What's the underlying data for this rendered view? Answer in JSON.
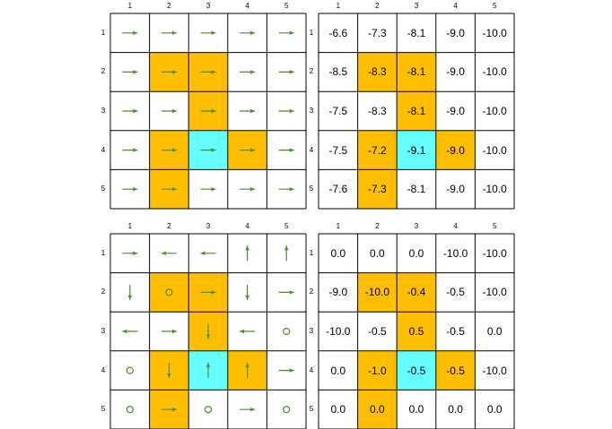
{
  "colors": {
    "highlight": "#FFBF00",
    "current": "#66FFFF",
    "arrow": "#4E8A2E",
    "grid_line": "#000000"
  },
  "panels": [
    {
      "id": "policy-top",
      "type": "arrows",
      "col_labels": [
        "1",
        "2",
        "3",
        "4",
        "5"
      ],
      "row_labels": [
        "1",
        "2",
        "3",
        "4",
        "5"
      ],
      "cell_colors": [
        [
          "",
          "",
          "",
          "",
          ""
        ],
        [
          "",
          "highlight",
          "highlight",
          "",
          ""
        ],
        [
          "",
          "",
          "highlight",
          "",
          ""
        ],
        [
          "",
          "highlight",
          "current",
          "highlight",
          ""
        ],
        [
          "",
          "highlight",
          "",
          "",
          ""
        ]
      ],
      "cells": [
        [
          "right",
          "right",
          "right",
          "right",
          "right"
        ],
        [
          "right",
          "right",
          "right",
          "right",
          "right"
        ],
        [
          "right",
          "right",
          "right",
          "right",
          "right"
        ],
        [
          "right",
          "right",
          "right",
          "right",
          "right"
        ],
        [
          "right",
          "right",
          "right",
          "right",
          "right"
        ]
      ]
    },
    {
      "id": "values-top",
      "type": "values",
      "col_labels": [
        "1",
        "2",
        "3",
        "4",
        "5"
      ],
      "row_labels": [
        "1",
        "2",
        "3",
        "4",
        "5"
      ],
      "cell_colors": [
        [
          "",
          "",
          "",
          "",
          ""
        ],
        [
          "",
          "highlight",
          "highlight",
          "",
          ""
        ],
        [
          "",
          "",
          "highlight",
          "",
          ""
        ],
        [
          "",
          "highlight",
          "current",
          "highlight",
          ""
        ],
        [
          "",
          "highlight",
          "",
          "",
          ""
        ]
      ],
      "cells": [
        [
          "-6.6",
          "-7.3",
          "-8.1",
          "-9.0",
          "-10.0"
        ],
        [
          "-8.5",
          "-8.3",
          "-8.1",
          "-9.0",
          "-10.0"
        ],
        [
          "-7.5",
          "-8.3",
          "-8.1",
          "-9.0",
          "-10.0"
        ],
        [
          "-7.5",
          "-7.2",
          "-9.1",
          "-9.0",
          "-10.0"
        ],
        [
          "-7.6",
          "-7.3",
          "-8.1",
          "-9.0",
          "-10.0"
        ]
      ]
    },
    {
      "id": "policy-bottom",
      "type": "arrows",
      "col_labels": [
        "1",
        "2",
        "3",
        "4",
        "5"
      ],
      "row_labels": [
        "1",
        "2",
        "3",
        "4",
        "5"
      ],
      "cell_colors": [
        [
          "",
          "",
          "",
          "",
          ""
        ],
        [
          "",
          "highlight",
          "highlight",
          "",
          ""
        ],
        [
          "",
          "",
          "highlight",
          "",
          ""
        ],
        [
          "",
          "highlight",
          "current",
          "highlight",
          ""
        ],
        [
          "",
          "highlight",
          "",
          "",
          ""
        ]
      ],
      "cells": [
        [
          "right",
          "left",
          "left",
          "up",
          "up"
        ],
        [
          "down",
          "stay",
          "right",
          "down",
          "right"
        ],
        [
          "left",
          "right",
          "down",
          "left",
          "stay"
        ],
        [
          "stay",
          "down",
          "up",
          "up",
          "right"
        ],
        [
          "stay",
          "right",
          "stay",
          "right",
          "stay"
        ]
      ]
    },
    {
      "id": "values-bottom",
      "type": "values",
      "col_labels": [
        "1",
        "2",
        "3",
        "4",
        "5"
      ],
      "row_labels": [
        "1",
        "2",
        "3",
        "4",
        "5"
      ],
      "cell_colors": [
        [
          "",
          "",
          "",
          "",
          ""
        ],
        [
          "",
          "highlight",
          "highlight",
          "",
          ""
        ],
        [
          "",
          "",
          "highlight",
          "",
          ""
        ],
        [
          "",
          "highlight",
          "current",
          "highlight",
          ""
        ],
        [
          "",
          "highlight",
          "",
          "",
          ""
        ]
      ],
      "cells": [
        [
          "0.0",
          "0.0",
          "0.0",
          "-10.0",
          "-10.0"
        ],
        [
          "-9.0",
          "-10.0",
          "-0.4",
          "-0.5",
          "-10.0"
        ],
        [
          "-10.0",
          "-0.5",
          "0.5",
          "-0.5",
          "0.0"
        ],
        [
          "0.0",
          "-1.0",
          "-0.5",
          "-0.5",
          "-10.0"
        ],
        [
          "0.0",
          "0.0",
          "0.0",
          "0.0",
          "0.0"
        ]
      ]
    }
  ]
}
